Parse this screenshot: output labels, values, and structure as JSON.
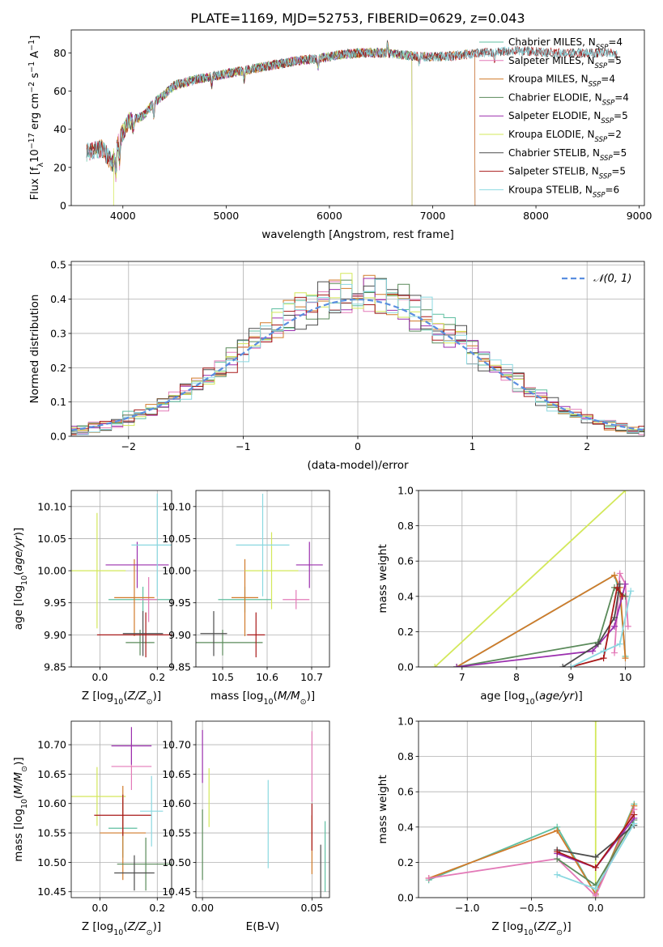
{
  "colors": {
    "Chabrier MILES": "#5fbfa1",
    "Salpeter MILES": "#e37ab8",
    "Kroupa MILES": "#d17a2a",
    "Chabrier ELODIE": "#5a8a5a",
    "Salpeter ELODIE": "#9b2fae",
    "Kroupa ELODIE": "#d3e85a",
    "Chabrier STELIB": "#4d4d4d",
    "Salpeter STELIB": "#a81919",
    "Kroupa STELIB": "#8ad8e0",
    "normal_line": "#5a8ee0"
  },
  "chart_data": [
    {
      "id": "spectrum",
      "type": "line",
      "title": "PLATE=1169, MJD=52753, FIBERID=0629, z=0.043",
      "xlabel": "wavelength [Angstrom, rest frame]",
      "ylabel": "Flux [f_λ 10^-17 erg cm^-2 s^-1 A^-1]",
      "xlim": [
        3500,
        9050
      ],
      "ylim": [
        0,
        92
      ],
      "xticks": [
        4000,
        5000,
        6000,
        7000,
        8000,
        9000
      ],
      "yticks": [
        0,
        20,
        40,
        60,
        80
      ],
      "grid": false,
      "legend_position": "top-right",
      "legend": [
        {
          "base": "Chabrier MILES, N",
          "sub": "SSP",
          "tail": "=4"
        },
        {
          "base": "Salpeter MILES, N",
          "sub": "SSP",
          "tail": "=5"
        },
        {
          "base": "Kroupa MILES, N",
          "sub": "SSP",
          "tail": "=4"
        },
        {
          "base": "Chabrier ELODIE, N",
          "sub": "SSP",
          "tail": "=4"
        },
        {
          "base": "Salpeter ELODIE, N",
          "sub": "SSP",
          "tail": "=5"
        },
        {
          "base": "Kroupa ELODIE, N",
          "sub": "SSP",
          "tail": "=2"
        },
        {
          "base": "Chabrier STELIB, N",
          "sub": "SSP",
          "tail": "=5"
        },
        {
          "base": "Salpeter STELIB, N",
          "sub": "SSP",
          "tail": "=5"
        },
        {
          "base": "Kroupa STELIB, N",
          "sub": "SSP",
          "tail": "=6"
        }
      ],
      "continuum": [
        [
          3650,
          28
        ],
        [
          3800,
          30
        ],
        [
          3900,
          22
        ],
        [
          3950,
          32
        ],
        [
          4050,
          44
        ],
        [
          4200,
          47
        ],
        [
          4300,
          54
        ],
        [
          4400,
          58
        ],
        [
          4500,
          63
        ],
        [
          4700,
          66
        ],
        [
          4900,
          68
        ],
        [
          5100,
          70
        ],
        [
          5300,
          72
        ],
        [
          5500,
          74
        ],
        [
          5700,
          76
        ],
        [
          5900,
          77
        ],
        [
          6100,
          79
        ],
        [
          6300,
          80
        ],
        [
          6500,
          80
        ],
        [
          6700,
          79
        ],
        [
          6900,
          78
        ],
        [
          7100,
          78
        ],
        [
          7300,
          79
        ],
        [
          7500,
          80
        ],
        [
          7700,
          81
        ],
        [
          7900,
          81
        ],
        [
          8100,
          80
        ],
        [
          8300,
          80
        ],
        [
          8500,
          80
        ],
        [
          8700,
          80
        ],
        [
          8790,
          79
        ]
      ],
      "model_ranges": [
        {
          "model": "Chabrier MILES",
          "x": [
            3650,
            7410
          ]
        },
        {
          "model": "Salpeter MILES",
          "x": [
            3650,
            7410
          ]
        },
        {
          "model": "Kroupa MILES",
          "x": [
            3650,
            7410
          ]
        },
        {
          "model": "Chabrier ELODIE",
          "x": [
            3900,
            6800
          ]
        },
        {
          "model": "Salpeter ELODIE",
          "x": [
            3900,
            6800
          ]
        },
        {
          "model": "Kroupa ELODIE",
          "x": [
            3900,
            6800
          ]
        },
        {
          "model": "Chabrier STELIB",
          "x": [
            3650,
            8790
          ]
        },
        {
          "model": "Salpeter STELIB",
          "x": [
            3650,
            8790
          ]
        },
        {
          "model": "Kroupa STELIB",
          "x": [
            3650,
            8790
          ]
        }
      ]
    },
    {
      "id": "residuals",
      "type": "histogram",
      "xlabel": "(data-model)/error",
      "ylabel": "Normed distribution",
      "xlim": [
        -2.5,
        2.5
      ],
      "ylim": [
        0,
        0.51
      ],
      "xticks": [
        -2,
        -1,
        0,
        1,
        2
      ],
      "yticks": [
        0.0,
        0.1,
        0.2,
        0.3,
        0.4,
        0.5
      ],
      "grid": true,
      "legend_position": "top-right",
      "legend": [
        {
          "label": "𝒩(0, 1)",
          "style": "dashed"
        }
      ],
      "bin_width": 0.1
    },
    {
      "id": "age_vs_Z",
      "type": "errorbar",
      "xlabel": "Z [log10(Z/Z⊙)]",
      "ylabel": "age  [log10(age/yr)]",
      "xlim": [
        -0.1,
        0.25
      ],
      "ylim": [
        9.85,
        10.125
      ],
      "xticks": [
        0.0,
        0.2
      ],
      "yticks": [
        9.85,
        9.9,
        9.95,
        10.0,
        10.05,
        10.1
      ],
      "grid": true,
      "points": [
        {
          "model": "Chabrier MILES",
          "x": 0.15,
          "xerr": 0.12,
          "y": 9.955,
          "yerr": 0.02
        },
        {
          "model": "Salpeter MILES",
          "x": 0.17,
          "xerr": 0.03,
          "y": 9.955,
          "yerr": 0.035
        },
        {
          "model": "Kroupa MILES",
          "x": 0.12,
          "xerr": 0.07,
          "y": 9.958,
          "yerr": 0.06
        },
        {
          "model": "Chabrier ELODIE",
          "x": 0.14,
          "xerr": 0.05,
          "y": 9.888,
          "yerr": 0.02
        },
        {
          "model": "Salpeter ELODIE",
          "x": 0.13,
          "xerr": 0.11,
          "y": 10.009,
          "yerr": 0.036
        },
        {
          "model": "Kroupa ELODIE",
          "x": -0.01,
          "xerr": 0.1,
          "y": 10.0,
          "yerr": 0.09
        },
        {
          "model": "Chabrier STELIB",
          "x": 0.15,
          "xerr": 0.07,
          "y": 9.902,
          "yerr": 0.035
        },
        {
          "model": "Salpeter STELIB",
          "x": 0.16,
          "xerr": 0.17,
          "y": 9.9,
          "yerr": 0.035
        },
        {
          "model": "Kroupa STELIB",
          "x": 0.2,
          "xerr": 0.09,
          "y": 10.04,
          "yerr": 0.08
        }
      ]
    },
    {
      "id": "age_vs_mass",
      "type": "errorbar",
      "xlabel": "mass [log10(M/M⊙)]",
      "ylabel": "",
      "xlim": [
        10.44,
        10.74
      ],
      "ylim": [
        9.85,
        10.125
      ],
      "xticks": [
        10.5,
        10.6,
        10.7
      ],
      "yticks": [
        9.85,
        9.9,
        9.95,
        10.0,
        10.05,
        10.1
      ],
      "grid": true,
      "points": [
        {
          "model": "Chabrier MILES",
          "x": 10.55,
          "xerr": 0.06,
          "y": 9.955,
          "yerr": 0.02
        },
        {
          "model": "Salpeter MILES",
          "x": 10.665,
          "xerr": 0.03,
          "y": 9.955,
          "yerr": 0.015
        },
        {
          "model": "Kroupa MILES",
          "x": 10.55,
          "xerr": 0.03,
          "y": 9.958,
          "yerr": 0.06
        },
        {
          "model": "Chabrier ELODIE",
          "x": 10.5,
          "xerr": 0.09,
          "y": 9.888,
          "yerr": 0.02
        },
        {
          "model": "Salpeter ELODIE",
          "x": 10.695,
          "xerr": 0.03,
          "y": 10.009,
          "yerr": 0.036
        },
        {
          "model": "Kroupa ELODIE",
          "x": 10.61,
          "xerr": 0.06,
          "y": 10.0,
          "yerr": 0.06
        },
        {
          "model": "Chabrier STELIB",
          "x": 10.48,
          "xerr": 0.03,
          "y": 9.902,
          "yerr": 0.035
        },
        {
          "model": "Salpeter STELIB",
          "x": 10.575,
          "xerr": 0.02,
          "y": 9.9,
          "yerr": 0.035
        },
        {
          "model": "Kroupa STELIB",
          "x": 10.59,
          "xerr": 0.06,
          "y": 10.04,
          "yerr": 0.08
        }
      ]
    },
    {
      "id": "weight_vs_age",
      "type": "line",
      "xlabel": "age  [log10(age/yr)]",
      "ylabel": "mass weight",
      "xlim": [
        6.2,
        10.35
      ],
      "ylim": [
        0,
        1.0
      ],
      "xticks": [
        7,
        8,
        9,
        10
      ],
      "yticks": [
        0.0,
        0.2,
        0.4,
        0.6,
        0.8,
        1.0
      ],
      "grid": true,
      "series": [
        {
          "model": "Kroupa ELODIE",
          "x": [
            6.5,
            10.0
          ],
          "y": [
            0.0,
            1.0
          ]
        },
        {
          "model": "Chabrier MILES",
          "x": [
            6.9,
            9.8,
            9.9,
            10.0
          ],
          "y": [
            0.0,
            0.52,
            0.42,
            0.06
          ]
        },
        {
          "model": "Kroupa MILES",
          "x": [
            6.9,
            9.8,
            9.9,
            10.0
          ],
          "y": [
            0.0,
            0.52,
            0.45,
            0.05
          ]
        },
        {
          "model": "Salpeter MILES",
          "x": [
            9.8,
            9.9,
            10.0,
            10.05
          ],
          "y": [
            0.08,
            0.53,
            0.47,
            0.23
          ]
        },
        {
          "model": "Chabrier ELODIE",
          "x": [
            6.9,
            9.5,
            9.8,
            10.0
          ],
          "y": [
            0.0,
            0.14,
            0.45,
            0.4
          ]
        },
        {
          "model": "Salpeter ELODIE",
          "x": [
            6.9,
            9.4,
            9.8,
            10.0
          ],
          "y": [
            0.0,
            0.09,
            0.23,
            0.47
          ]
        },
        {
          "model": "Chabrier STELIB",
          "x": [
            8.85,
            9.5,
            9.8,
            9.9
          ],
          "y": [
            0.0,
            0.13,
            0.28,
            0.47
          ]
        },
        {
          "model": "Salpeter STELIB",
          "x": [
            9.0,
            9.6,
            9.85,
            9.95
          ],
          "y": [
            0.0,
            0.05,
            0.45,
            0.4
          ]
        },
        {
          "model": "Kroupa STELIB",
          "x": [
            9.0,
            9.6,
            9.9,
            10.1
          ],
          "y": [
            0.0,
            0.09,
            0.13,
            0.43
          ]
        }
      ]
    },
    {
      "id": "mass_vs_Z",
      "type": "errorbar",
      "xlabel": "Z [log10(Z/Z⊙)]",
      "ylabel": "mass [log10(M/M⊙)]",
      "xlim": [
        -0.1,
        0.25
      ],
      "ylim": [
        10.44,
        10.74
      ],
      "xticks": [
        0.0,
        0.2
      ],
      "yticks": [
        10.45,
        10.5,
        10.55,
        10.6,
        10.65,
        10.7
      ],
      "grid": true,
      "points": [
        {
          "model": "Chabrier MILES",
          "x": 0.08,
          "xerr": 0.05,
          "y": 10.558,
          "yerr": 0.05
        },
        {
          "model": "Salpeter MILES",
          "x": 0.11,
          "xerr": 0.07,
          "y": 10.663,
          "yerr": 0.04
        },
        {
          "model": "Kroupa MILES",
          "x": 0.08,
          "xerr": 0.08,
          "y": 10.55,
          "yerr": 0.08
        },
        {
          "model": "Chabrier ELODIE",
          "x": 0.16,
          "xerr": 0.1,
          "y": 10.497,
          "yerr": 0.045
        },
        {
          "model": "Salpeter ELODIE",
          "x": 0.11,
          "xerr": 0.07,
          "y": 10.698,
          "yerr": 0.032
        },
        {
          "model": "Kroupa ELODIE",
          "x": -0.01,
          "xerr": 0.1,
          "y": 10.612,
          "yerr": 0.05
        },
        {
          "model": "Chabrier STELIB",
          "x": 0.12,
          "xerr": 0.07,
          "y": 10.482,
          "yerr": 0.03
        },
        {
          "model": "Salpeter STELIB",
          "x": 0.08,
          "xerr": 0.1,
          "y": 10.58,
          "yerr": 0.035
        },
        {
          "model": "Kroupa STELIB",
          "x": 0.18,
          "xerr": 0.04,
          "y": 10.587,
          "yerr": 0.06
        }
      ]
    },
    {
      "id": "mass_vs_ebv",
      "type": "errorbar",
      "xlabel": "E(B-V)",
      "ylabel": "",
      "xlim": [
        -0.003,
        0.058
      ],
      "ylim": [
        10.44,
        10.74
      ],
      "xticks": [
        0.0,
        0.05
      ],
      "yticks": [
        10.45,
        10.5,
        10.55,
        10.6,
        10.65,
        10.7
      ],
      "grid": true,
      "points": [
        {
          "model": "Chabrier MILES",
          "x": 0.056,
          "xerr": 0.0,
          "y": 10.51,
          "yerr": 0.06
        },
        {
          "model": "Salpeter MILES",
          "x": 0.05,
          "xerr": 0.0,
          "y": 10.663,
          "yerr": 0.06
        },
        {
          "model": "Kroupa MILES",
          "x": 0.05,
          "xerr": 0.0,
          "y": 10.53,
          "yerr": 0.05
        },
        {
          "model": "Chabrier ELODIE",
          "x": 0.0,
          "xerr": 0.0,
          "y": 10.53,
          "yerr": 0.06
        },
        {
          "model": "Salpeter ELODIE",
          "x": 0.0,
          "xerr": 0.0,
          "y": 10.68,
          "yerr": 0.045
        },
        {
          "model": "Kroupa ELODIE",
          "x": 0.003,
          "xerr": 0.0,
          "y": 10.61,
          "yerr": 0.05
        },
        {
          "model": "Chabrier STELIB",
          "x": 0.054,
          "xerr": 0.0,
          "y": 10.48,
          "yerr": 0.05
        },
        {
          "model": "Salpeter STELIB",
          "x": 0.05,
          "xerr": 0.0,
          "y": 10.56,
          "yerr": 0.04
        },
        {
          "model": "Kroupa STELIB",
          "x": 0.03,
          "xerr": 0.0,
          "y": 10.565,
          "yerr": 0.075
        }
      ]
    },
    {
      "id": "weight_vs_Z",
      "type": "line",
      "xlabel": "Z [log10(Z/Z⊙)]",
      "ylabel": "mass weight",
      "xlim": [
        -1.38,
        0.38
      ],
      "ylim": [
        0,
        1.0
      ],
      "xticks": [
        -1.0,
        -0.5,
        0.0
      ],
      "yticks": [
        0.0,
        0.2,
        0.4,
        0.6,
        0.8,
        1.0
      ],
      "grid": true,
      "series": [
        {
          "model": "Kroupa ELODIE",
          "x": [
            0.0,
            0.0
          ],
          "y": [
            0.0,
            1.0
          ]
        },
        {
          "model": "Chabrier MILES",
          "x": [
            -1.3,
            -0.3,
            0.0,
            0.3
          ],
          "y": [
            0.1,
            0.4,
            0.02,
            0.53
          ]
        },
        {
          "model": "Kroupa MILES",
          "x": [
            -1.3,
            -0.3,
            0.0,
            0.3
          ],
          "y": [
            0.11,
            0.38,
            0.02,
            0.52
          ]
        },
        {
          "model": "Salpeter MILES",
          "x": [
            -1.3,
            -0.3,
            0.0,
            0.3
          ],
          "y": [
            0.11,
            0.22,
            0.01,
            0.5
          ]
        },
        {
          "model": "Chabrier ELODIE",
          "x": [
            -0.3,
            0.0,
            0.3
          ],
          "y": [
            0.22,
            0.07,
            0.44
          ]
        },
        {
          "model": "Salpeter ELODIE",
          "x": [
            -0.3,
            0.0,
            0.3
          ],
          "y": [
            0.25,
            0.17,
            0.45
          ]
        },
        {
          "model": "Chabrier STELIB",
          "x": [
            -0.3,
            0.0,
            0.3
          ],
          "y": [
            0.27,
            0.23,
            0.41
          ]
        },
        {
          "model": "Salpeter STELIB",
          "x": [
            -0.3,
            0.0,
            0.3
          ],
          "y": [
            0.26,
            0.17,
            0.47
          ]
        },
        {
          "model": "Kroupa STELIB",
          "x": [
            -0.3,
            0.0,
            0.3
          ],
          "y": [
            0.13,
            0.05,
            0.42
          ]
        }
      ]
    }
  ]
}
